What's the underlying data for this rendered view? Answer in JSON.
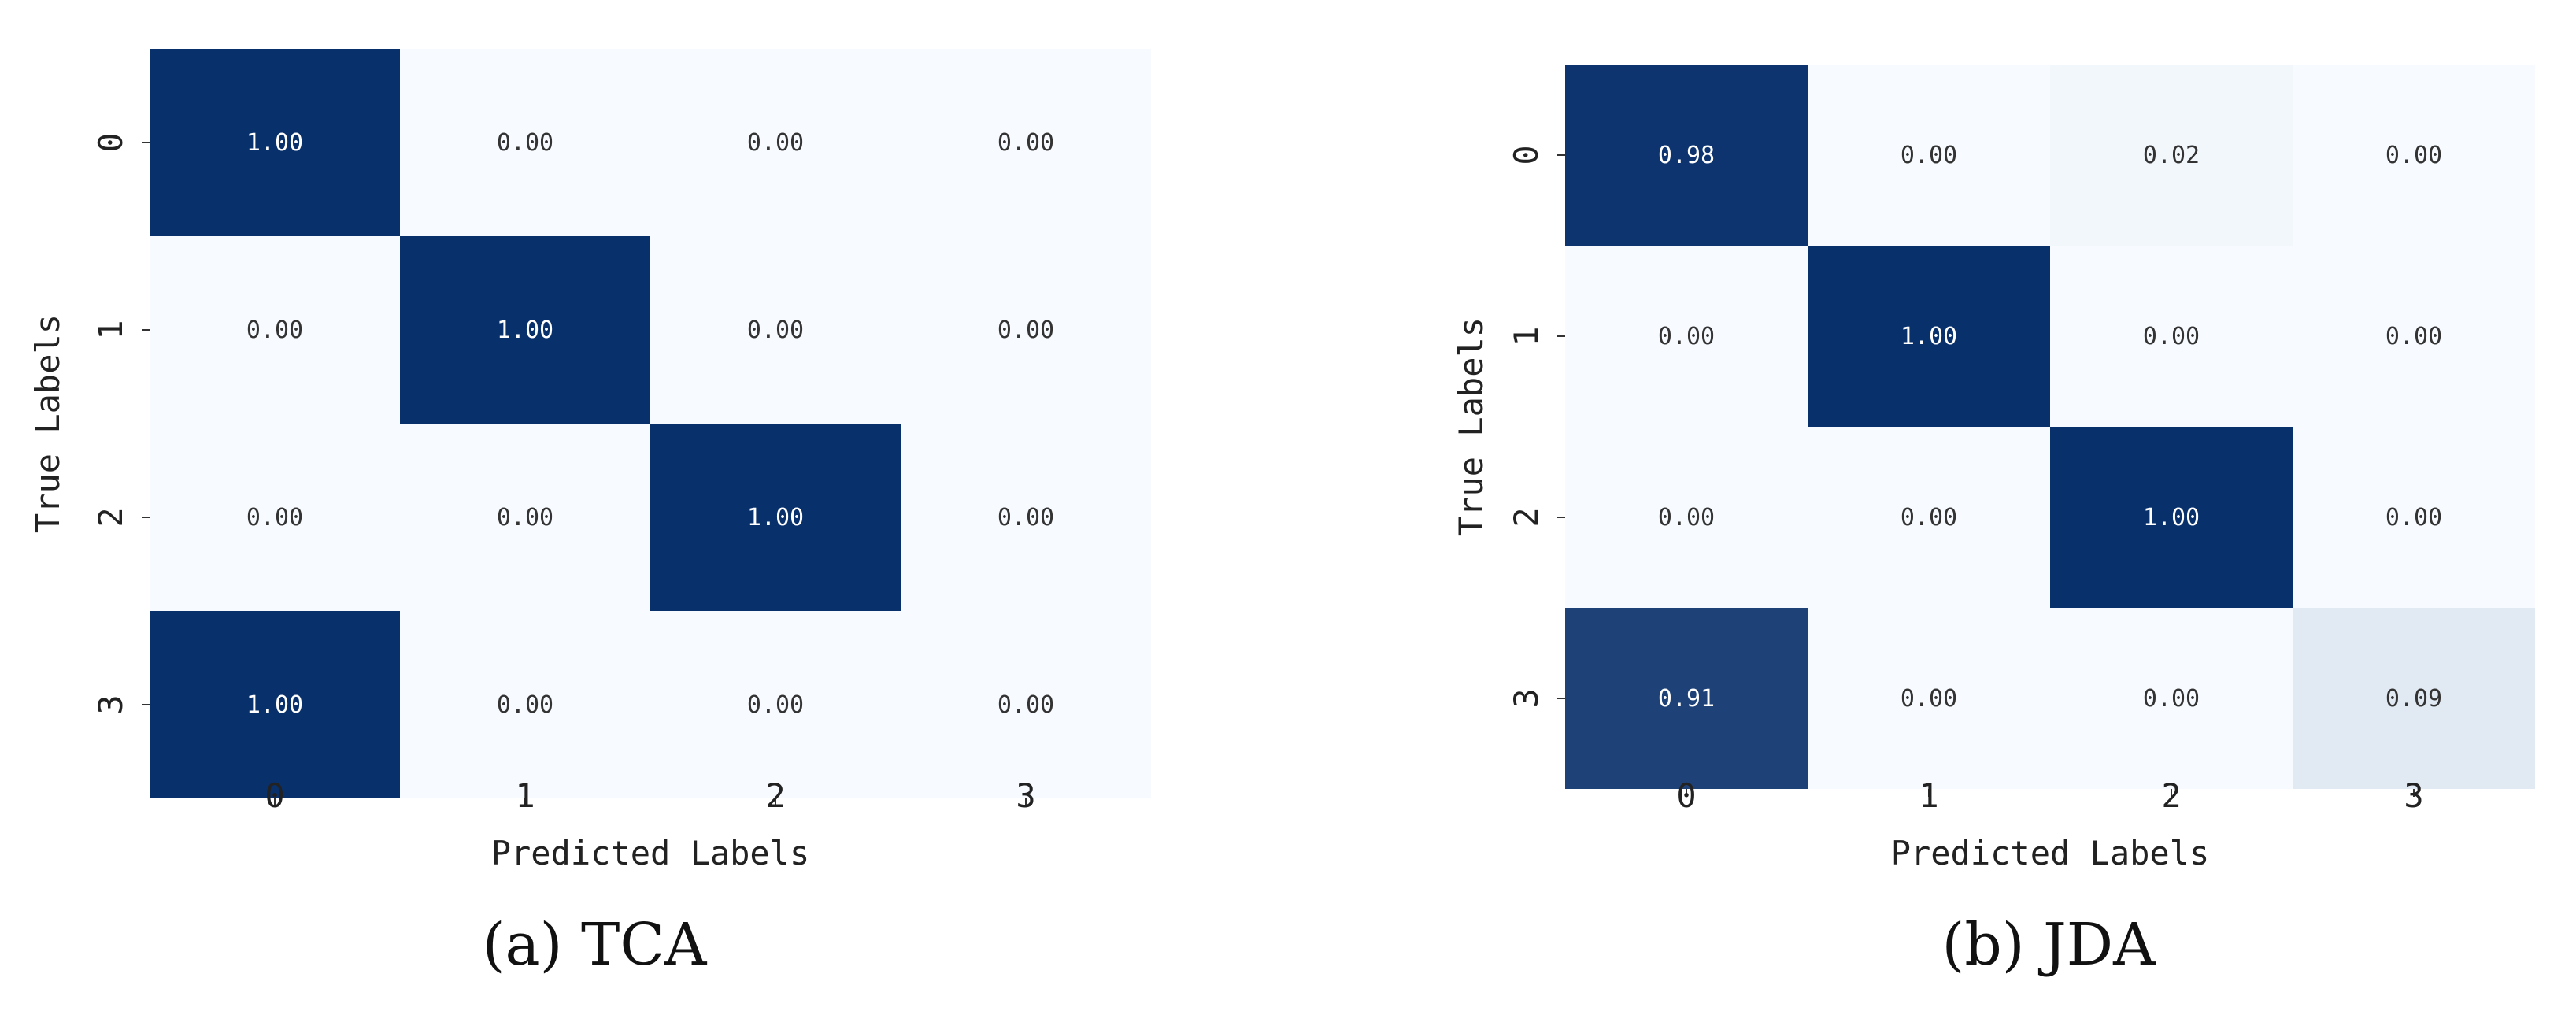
{
  "colors": {
    "low": "#f7fbff",
    "high": "#08306b",
    "text_dark": "#333333",
    "text_light": "#ffffff"
  },
  "chart_data": [
    {
      "type": "heatmap",
      "caption": "(a) TCA",
      "xlabel": "Predicted Labels",
      "ylabel": "True Labels",
      "x_categories": [
        "0",
        "1",
        "2",
        "3"
      ],
      "y_categories": [
        "0",
        "1",
        "2",
        "3"
      ],
      "values": [
        [
          1.0,
          0.0,
          0.0,
          0.0
        ],
        [
          0.0,
          1.0,
          0.0,
          0.0
        ],
        [
          0.0,
          0.0,
          1.0,
          0.0
        ],
        [
          1.0,
          0.0,
          0.0,
          0.0
        ]
      ],
      "labels": [
        [
          "1.00",
          "0.00",
          "0.00",
          "0.00"
        ],
        [
          "0.00",
          "1.00",
          "0.00",
          "0.00"
        ],
        [
          "0.00",
          "0.00",
          "1.00",
          "0.00"
        ],
        [
          "1.00",
          "0.00",
          "0.00",
          "0.00"
        ]
      ],
      "colorscale": "Blues",
      "vmin": 0,
      "vmax": 1
    },
    {
      "type": "heatmap",
      "caption": "(b) JDA",
      "xlabel": "Predicted Labels",
      "ylabel": "True Labels",
      "x_categories": [
        "0",
        "1",
        "2",
        "3"
      ],
      "y_categories": [
        "0",
        "1",
        "2",
        "3"
      ],
      "values": [
        [
          0.98,
          0.0,
          0.02,
          0.0
        ],
        [
          0.0,
          1.0,
          0.0,
          0.0
        ],
        [
          0.0,
          0.0,
          1.0,
          0.0
        ],
        [
          0.91,
          0.0,
          0.0,
          0.09
        ]
      ],
      "labels": [
        [
          "0.98",
          "0.00",
          "0.02",
          "0.00"
        ],
        [
          "0.00",
          "1.00",
          "0.00",
          "0.00"
        ],
        [
          "0.00",
          "0.00",
          "1.00",
          "0.00"
        ],
        [
          "0.91",
          "0.00",
          "0.00",
          "0.09"
        ]
      ],
      "colorscale": "Blues",
      "vmin": 0,
      "vmax": 1
    }
  ]
}
